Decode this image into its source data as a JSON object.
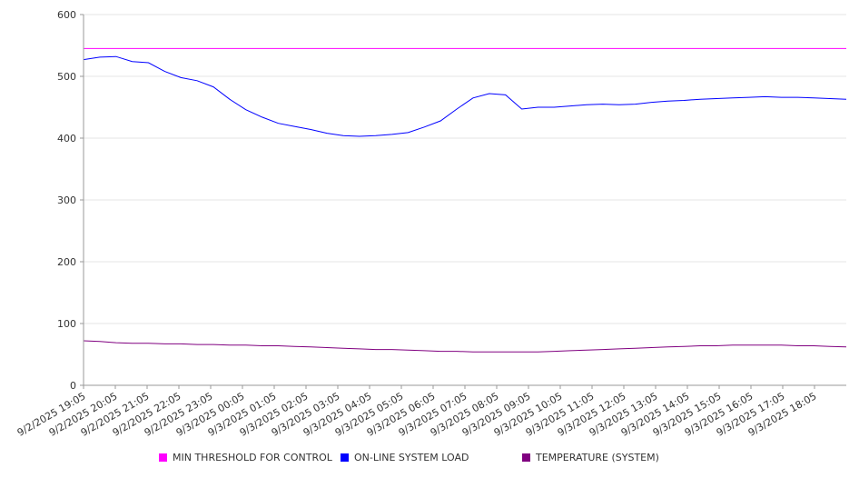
{
  "chart_data": {
    "type": "line",
    "title": "",
    "xlabel": "",
    "ylabel": "",
    "ylim": [
      0,
      600
    ],
    "yticks": [
      0,
      100,
      200,
      300,
      400,
      500,
      600
    ],
    "grid": "horizontal",
    "legend_position": "bottom",
    "x_tick_labels": [
      "9/2/2025 19:05",
      "9/2/2025 20:05",
      "9/2/2025 21:05",
      "9/2/2025 22:05",
      "9/2/2025 23:05",
      "9/3/2025 00:05",
      "9/3/2025 01:05",
      "9/3/2025 02:05",
      "9/3/2025 03:05",
      "9/3/2025 04:05",
      "9/3/2025 05:05",
      "9/3/2025 06:05",
      "9/3/2025 07:05",
      "9/3/2025 08:05",
      "9/3/2025 09:05",
      "9/3/2025 10:05",
      "9/3/2025 11:05",
      "9/3/2025 12:05",
      "9/3/2025 13:05",
      "9/3/2025 14:05",
      "9/3/2025 15:05",
      "9/3/2025 16:05",
      "9/3/2025 17:05",
      "9/3/2025 18:05"
    ],
    "x": [
      "9/2/2025 19:05",
      "9/2/2025 19:35",
      "9/2/2025 20:05",
      "9/2/2025 20:35",
      "9/2/2025 21:05",
      "9/2/2025 21:35",
      "9/2/2025 22:05",
      "9/2/2025 22:35",
      "9/2/2025 23:05",
      "9/2/2025 23:35",
      "9/3/2025 00:05",
      "9/3/2025 00:35",
      "9/3/2025 01:05",
      "9/3/2025 01:35",
      "9/3/2025 02:05",
      "9/3/2025 02:35",
      "9/3/2025 03:05",
      "9/3/2025 03:35",
      "9/3/2025 04:05",
      "9/3/2025 04:35",
      "9/3/2025 05:05",
      "9/3/2025 05:35",
      "9/3/2025 06:05",
      "9/3/2025 06:35",
      "9/3/2025 07:05",
      "9/3/2025 07:35",
      "9/3/2025 08:05",
      "9/3/2025 08:35",
      "9/3/2025 09:05",
      "9/3/2025 09:35",
      "9/3/2025 10:05",
      "9/3/2025 10:35",
      "9/3/2025 11:05",
      "9/3/2025 11:35",
      "9/3/2025 12:05",
      "9/3/2025 12:35",
      "9/3/2025 13:05",
      "9/3/2025 13:35",
      "9/3/2025 14:05",
      "9/3/2025 14:35",
      "9/3/2025 15:05",
      "9/3/2025 15:35",
      "9/3/2025 16:05",
      "9/3/2025 16:35",
      "9/3/2025 17:05",
      "9/3/2025 17:35",
      "9/3/2025 18:05",
      "9/3/2025 18:35"
    ],
    "series": [
      {
        "name": "MIN THRESHOLD FOR CONTROL",
        "color": "#ff00ff",
        "values": [
          545,
          545,
          545,
          545,
          545,
          545,
          545,
          545,
          545,
          545,
          545,
          545,
          545,
          545,
          545,
          545,
          545,
          545,
          545,
          545,
          545,
          545,
          545,
          545,
          545,
          545,
          545,
          545,
          545,
          545,
          545,
          545,
          545,
          545,
          545,
          545,
          545,
          545,
          545,
          545,
          545,
          545,
          545,
          545,
          545,
          545,
          545,
          545
        ]
      },
      {
        "name": "ON-LINE SYSTEM LOAD",
        "color": "#0000ff",
        "values": [
          527,
          531,
          532,
          524,
          522,
          508,
          498,
          493,
          483,
          463,
          446,
          434,
          424,
          419,
          414,
          408,
          404,
          403,
          404,
          406,
          409,
          418,
          428,
          447,
          465,
          472,
          470,
          447,
          450,
          450,
          452,
          454,
          455,
          454,
          455,
          458,
          460,
          461,
          463,
          464,
          465,
          466,
          467,
          466,
          466,
          465,
          464,
          463
        ]
      },
      {
        "name": "TEMPERATURE (SYSTEM)",
        "color": "#800080",
        "values": [
          72,
          71,
          69,
          68,
          68,
          67,
          67,
          66,
          66,
          65,
          65,
          64,
          64,
          63,
          62,
          61,
          60,
          59,
          58,
          58,
          57,
          56,
          55,
          55,
          54,
          54,
          54,
          54,
          54,
          55,
          56,
          57,
          58,
          59,
          60,
          61,
          62,
          63,
          64,
          64,
          65,
          65,
          65,
          65,
          64,
          64,
          63,
          62
        ]
      }
    ]
  }
}
